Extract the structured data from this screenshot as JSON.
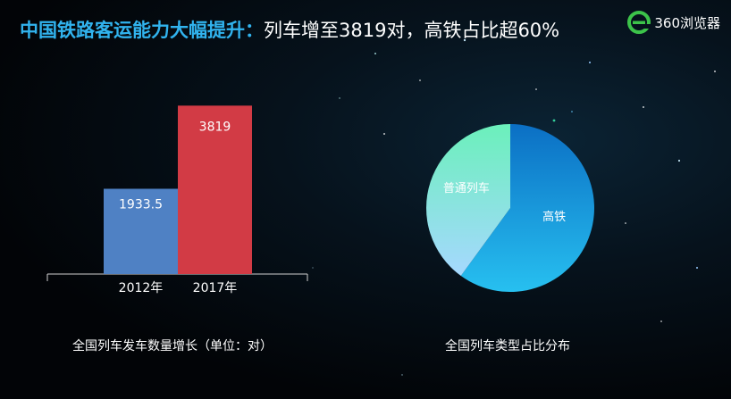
{
  "headline": {
    "highlight": "中国铁路客运能力大幅提升：",
    "rest": "列车增至3819对，高铁占比超60%"
  },
  "logo": {
    "text": "360浏览器",
    "icon": "browser-e-icon"
  },
  "colors": {
    "highlight": "#31b3ee",
    "bar_2012": "#4f81c4",
    "bar_2017": "#d23b45",
    "pie_hsr": "#1e9bdc",
    "pie_regular": "#7fe3c0"
  },
  "chart_data": [
    {
      "type": "bar",
      "categories": [
        "2012年",
        "2017年"
      ],
      "values": [
        1933.5,
        3819
      ],
      "value_labels": [
        "1933.5",
        "3819"
      ],
      "title": "全国列车发车数量增长（单位：对）",
      "xlabel": "",
      "ylabel": ""
    },
    {
      "type": "pie",
      "labels": [
        "高铁",
        "普通列车"
      ],
      "values": [
        60,
        40
      ],
      "title": "全国列车类型占比分布"
    }
  ]
}
